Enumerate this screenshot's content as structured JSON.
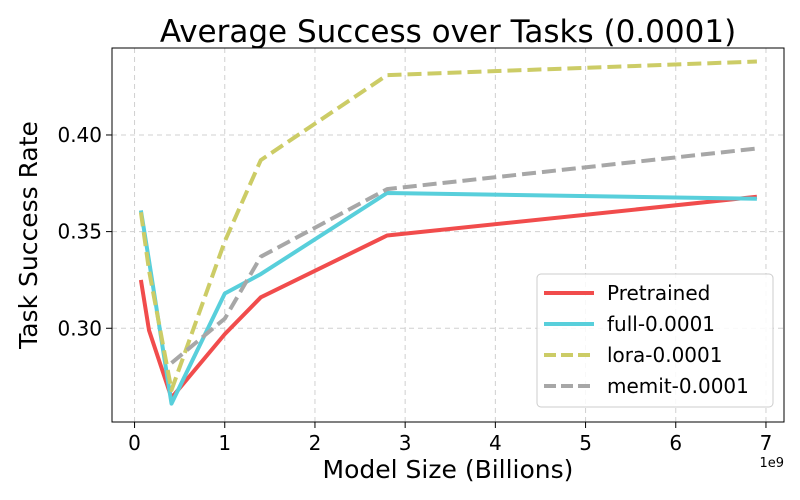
{
  "chart_data": {
    "type": "line",
    "title": "Average Success over Tasks (0.0001)",
    "xlabel": "Model Size (Billions)",
    "ylabel": "Task Success Rate",
    "x_offset_label": "1e9",
    "xlim": [
      -0.25,
      7.2
    ],
    "ylim": [
      0.2515,
      0.445
    ],
    "x_ticks": [
      0,
      1,
      2,
      3,
      4,
      5,
      6,
      7
    ],
    "y_ticks": [
      0.3,
      0.35,
      0.4
    ],
    "y_tick_labels": [
      "0.30",
      "0.35",
      "0.40"
    ],
    "grid": true,
    "legend_position": "lower right",
    "series": [
      {
        "name": "Pretrained",
        "color": "#f14c4c",
        "dash": "solid",
        "x": [
          0.07,
          0.16,
          0.41,
          1.0,
          1.4,
          2.8,
          6.9
        ],
        "y": [
          0.325,
          0.299,
          0.264,
          0.297,
          0.316,
          0.348,
          0.368
        ]
      },
      {
        "name": "full-0.0001",
        "color": "#58cfdb",
        "dash": "solid",
        "x": [
          0.07,
          0.16,
          0.41,
          1.0,
          1.4,
          2.8,
          6.9
        ],
        "y": [
          0.361,
          0.335,
          0.261,
          0.318,
          0.328,
          0.37,
          0.367
        ]
      },
      {
        "name": "lora-0.0001",
        "color": "#cccc66",
        "dash": "dashed",
        "x": [
          0.07,
          0.16,
          0.41,
          1.0,
          1.4,
          2.8,
          6.9
        ],
        "y": [
          0.36,
          0.33,
          0.268,
          0.345,
          0.387,
          0.431,
          0.438
        ]
      },
      {
        "name": "memit-0.0001",
        "color": "#a7a7a7",
        "dash": "dashed",
        "x": [
          0.41,
          1.0,
          1.4,
          2.8,
          6.9
        ],
        "y": [
          0.282,
          0.305,
          0.337,
          0.372,
          0.393
        ]
      }
    ]
  }
}
